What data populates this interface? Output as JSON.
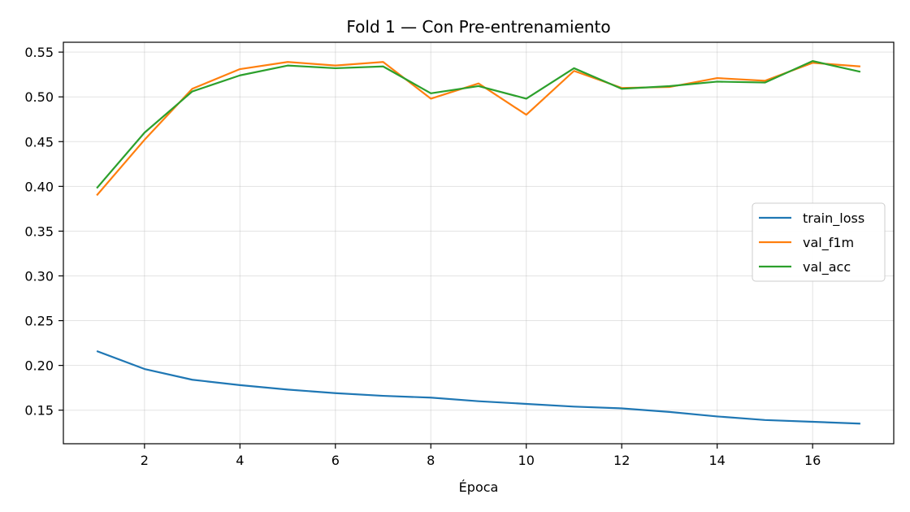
{
  "chart_data": {
    "type": "line",
    "title": "Fold 1 — Con Pre-entrenamiento",
    "xlabel": "Época",
    "ylabel": "",
    "xlim": [
      0.3,
      17.7
    ],
    "ylim": [
      0.1125,
      0.561
    ],
    "xticks": [
      2,
      4,
      6,
      8,
      10,
      12,
      14,
      16
    ],
    "yticks": [
      0.15,
      0.2,
      0.25,
      0.3,
      0.35,
      0.4,
      0.45,
      0.5,
      0.55
    ],
    "ytick_labels": [
      "0.15",
      "0.20",
      "0.25",
      "0.30",
      "0.35",
      "0.40",
      "0.45",
      "0.50",
      "0.55"
    ],
    "grid": true,
    "legend_position": "center-right",
    "x": [
      1,
      2,
      3,
      4,
      5,
      6,
      7,
      8,
      9,
      10,
      11,
      12,
      13,
      14,
      15,
      16,
      17
    ],
    "series": [
      {
        "name": "train_loss",
        "color": "#1f77b4",
        "values": [
          0.216,
          0.196,
          0.184,
          0.178,
          0.173,
          0.169,
          0.166,
          0.164,
          0.16,
          0.157,
          0.154,
          0.152,
          0.148,
          0.143,
          0.139,
          0.137,
          0.135
        ]
      },
      {
        "name": "val_f1m",
        "color": "#ff7f0e",
        "values": [
          0.39,
          0.452,
          0.509,
          0.531,
          0.539,
          0.535,
          0.539,
          0.498,
          0.515,
          0.48,
          0.529,
          0.51,
          0.511,
          0.521,
          0.518,
          0.538,
          0.534
        ]
      },
      {
        "name": "val_acc",
        "color": "#2ca02c",
        "values": [
          0.398,
          0.46,
          0.506,
          0.524,
          0.535,
          0.532,
          0.534,
          0.504,
          0.512,
          0.498,
          0.532,
          0.509,
          0.512,
          0.517,
          0.516,
          0.54,
          0.528
        ]
      }
    ]
  }
}
